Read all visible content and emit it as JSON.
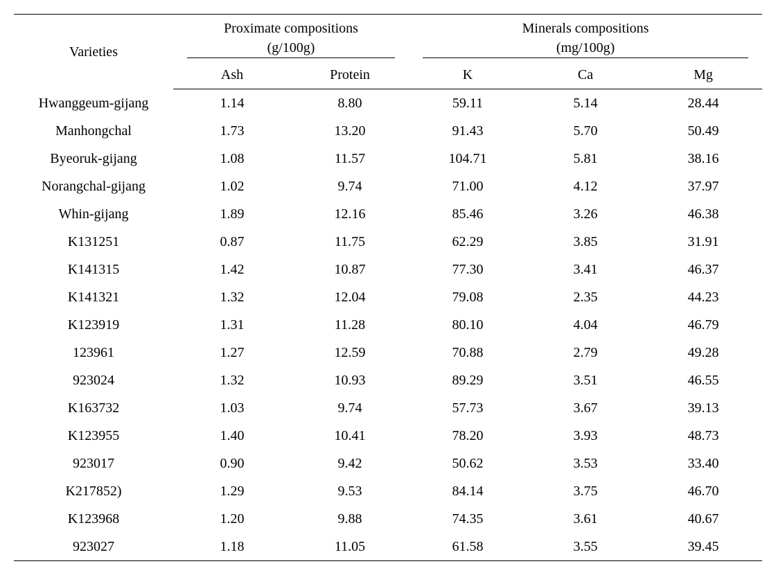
{
  "headers": {
    "varieties": "Varieties",
    "proximate_group": "Proximate compositions",
    "proximate_unit": "(g/100g)",
    "minerals_group": "Minerals compositions",
    "minerals_unit": "(mg/100g)",
    "ash": "Ash",
    "protein": "Protein",
    "k": "K",
    "ca": "Ca",
    "mg": "Mg"
  },
  "rows": [
    {
      "variety": "Hwanggeum-gijang",
      "ash": "1.14",
      "protein": "8.80",
      "k": "59.11",
      "ca": "5.14",
      "mg": "28.44"
    },
    {
      "variety": "Manhongchal",
      "ash": "1.73",
      "protein": "13.20",
      "k": "91.43",
      "ca": "5.70",
      "mg": "50.49"
    },
    {
      "variety": "Byeoruk-gijang",
      "ash": "1.08",
      "protein": "11.57",
      "k": "104.71",
      "ca": "5.81",
      "mg": "38.16"
    },
    {
      "variety": "Norangchal-gijang",
      "ash": "1.02",
      "protein": "9.74",
      "k": "71.00",
      "ca": "4.12",
      "mg": "37.97"
    },
    {
      "variety": "Whin-gijang",
      "ash": "1.89",
      "protein": "12.16",
      "k": "85.46",
      "ca": "3.26",
      "mg": "46.38"
    },
    {
      "variety": "K131251",
      "ash": "0.87",
      "protein": "11.75",
      "k": "62.29",
      "ca": "3.85",
      "mg": "31.91"
    },
    {
      "variety": "K141315",
      "ash": "1.42",
      "protein": "10.87",
      "k": "77.30",
      "ca": "3.41",
      "mg": "46.37"
    },
    {
      "variety": "K141321",
      "ash": "1.32",
      "protein": "12.04",
      "k": "79.08",
      "ca": "2.35",
      "mg": "44.23"
    },
    {
      "variety": "K123919",
      "ash": "1.31",
      "protein": "11.28",
      "k": "80.10",
      "ca": "4.04",
      "mg": "46.79"
    },
    {
      "variety": "123961",
      "ash": "1.27",
      "protein": "12.59",
      "k": "70.88",
      "ca": "2.79",
      "mg": "49.28"
    },
    {
      "variety": "923024",
      "ash": "1.32",
      "protein": "10.93",
      "k": "89.29",
      "ca": "3.51",
      "mg": "46.55"
    },
    {
      "variety": "K163732",
      "ash": "1.03",
      "protein": "9.74",
      "k": "57.73",
      "ca": "3.67",
      "mg": "39.13"
    },
    {
      "variety": "K123955",
      "ash": "1.40",
      "protein": "10.41",
      "k": "78.20",
      "ca": "3.93",
      "mg": "48.73"
    },
    {
      "variety": "923017",
      "ash": "0.90",
      "protein": "9.42",
      "k": "50.62",
      "ca": "3.53",
      "mg": "33.40"
    },
    {
      "variety": "K217852)",
      "ash": "1.29",
      "protein": "9.53",
      "k": "84.14",
      "ca": "3.75",
      "mg": "46.70"
    },
    {
      "variety": "K123968",
      "ash": "1.20",
      "protein": "9.88",
      "k": "74.35",
      "ca": "3.61",
      "mg": "40.67"
    },
    {
      "variety": "923027",
      "ash": "1.18",
      "protein": "11.05",
      "k": "61.58",
      "ca": "3.55",
      "mg": "39.45"
    }
  ],
  "style": {
    "font_size_pt": 15,
    "border_color": "#000000",
    "background_color": "#ffffff",
    "text_color": "#000000"
  }
}
